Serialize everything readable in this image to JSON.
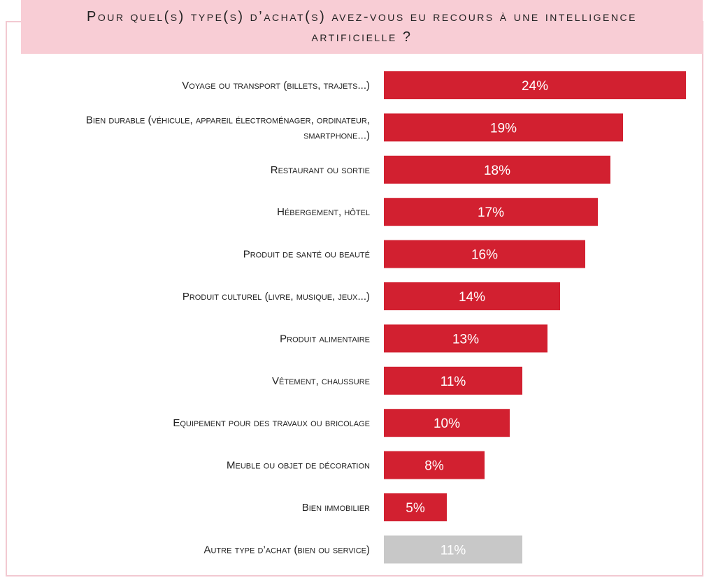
{
  "colors": {
    "bar": "#d22030",
    "bar_other": "#c8c8c8",
    "title_bg": "#f8cdd5",
    "frame": "#f2c9d1"
  },
  "chart_data": {
    "type": "bar",
    "orientation": "horizontal",
    "title": "Pour quel(s) type(s) d’achat(s) avez-vous eu recours à une intelligence artificielle ?",
    "categories": [
      "Voyage ou transport (billets, trajets...)",
      "Bien durable (véhicule, appareil électroménager, ordinateur, smartphone...)",
      "Restaurant ou sortie",
      "Hébergement, hôtel",
      "Produit de santé ou beauté",
      "Produit culturel (livre, musique, jeux...)",
      "Produit alimentaire",
      "Vêtement, chaussure",
      "Equipement pour des travaux ou bricolage",
      "Meuble ou objet de décoration",
      "Bien immobilier",
      "Autre type d’achat (bien ou service)"
    ],
    "values": [
      24,
      19,
      18,
      17,
      16,
      14,
      13,
      11,
      10,
      8,
      5,
      11
    ],
    "value_labels": [
      "24%",
      "19%",
      "18%",
      "17%",
      "16%",
      "14%",
      "13%",
      "11%",
      "10%",
      "8%",
      "5%",
      "11%"
    ],
    "highlight_last_gray": true,
    "xlim": [
      0,
      24
    ],
    "grid": false,
    "legend": "none"
  }
}
